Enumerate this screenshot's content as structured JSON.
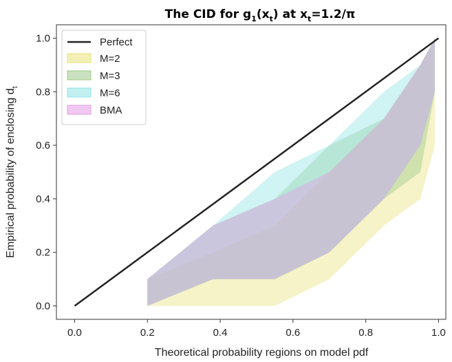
{
  "chart_data": {
    "type": "area",
    "title": {
      "main": "The CID for g",
      "g_sub": "1",
      "paren_open": "(x",
      "x_sub": "t",
      "paren_close": ") at x",
      "x2_sub": "t",
      "value": "=1.2/π"
    },
    "xlabel": "Theoretical probability regions on model pdf",
    "ylabel": {
      "main": "Empirical probability of enclosing d",
      "sub": "t"
    },
    "xlim": [
      -0.05,
      1.02
    ],
    "ylim": [
      -0.05,
      1.05
    ],
    "xticks": [
      0.0,
      0.2,
      0.4,
      0.6,
      0.8,
      1.0
    ],
    "xtick_labels": [
      "0.0",
      "0.2",
      "0.4",
      "0.6",
      "0.8",
      "1.0"
    ],
    "yticks": [
      0.0,
      0.2,
      0.4,
      0.6,
      0.8,
      1.0
    ],
    "ytick_labels": [
      "0.0",
      "0.2",
      "0.4",
      "0.6",
      "0.8",
      "1.0"
    ],
    "legend_position": "top-left",
    "perfect_line": {
      "name": "Perfect",
      "color": "#222222",
      "x": [
        0.0,
        1.0
      ],
      "y": [
        0.0,
        1.0
      ]
    },
    "series": [
      {
        "name": "M=2",
        "color": "#e8e37a",
        "x": [
          0.2,
          0.38,
          0.55,
          0.7,
          0.85,
          0.95,
          0.99
        ],
        "lower": [
          0.0,
          0.0,
          0.0,
          0.1,
          0.3,
          0.4,
          0.6
        ],
        "upper": [
          0.1,
          0.2,
          0.3,
          0.5,
          0.7,
          0.9,
          1.0
        ]
      },
      {
        "name": "M=3",
        "color": "#9cc98a",
        "x": [
          0.2,
          0.38,
          0.55,
          0.7,
          0.85,
          0.95,
          0.99
        ],
        "lower": [
          0.0,
          0.1,
          0.1,
          0.2,
          0.4,
          0.5,
          0.8
        ],
        "upper": [
          0.1,
          0.3,
          0.4,
          0.6,
          0.7,
          0.9,
          1.0
        ]
      },
      {
        "name": "M=6",
        "color": "#8fe3e3",
        "x": [
          0.2,
          0.38,
          0.55,
          0.7,
          0.85,
          0.95,
          0.99
        ],
        "lower": [
          0.0,
          0.1,
          0.1,
          0.2,
          0.4,
          0.6,
          0.8
        ],
        "upper": [
          0.1,
          0.3,
          0.5,
          0.6,
          0.8,
          0.9,
          1.0
        ]
      },
      {
        "name": "BMA",
        "color": "#e59be6",
        "x": [
          0.2,
          0.38,
          0.55,
          0.7,
          0.85,
          0.95,
          0.99
        ],
        "lower": [
          0.0,
          0.1,
          0.1,
          0.2,
          0.4,
          0.6,
          0.8
        ],
        "upper": [
          0.1,
          0.3,
          0.4,
          0.5,
          0.7,
          0.9,
          1.0
        ]
      }
    ]
  }
}
